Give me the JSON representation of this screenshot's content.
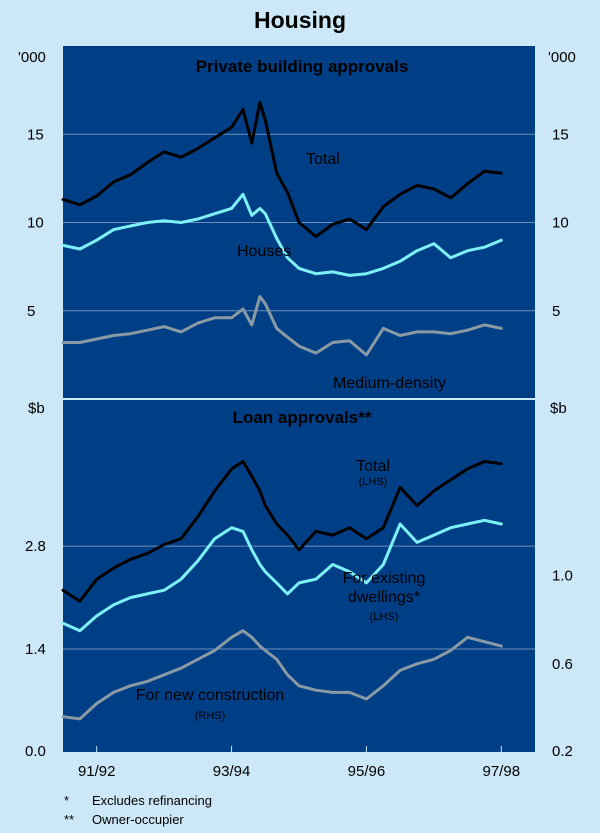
{
  "title": "Housing",
  "colors": {
    "background": "#cce8f8",
    "plot_background": "#003f86",
    "total": "#000000",
    "houses": "#7ef0f8",
    "medium_density": "#8a9aa4",
    "existing": "#7ef0f8",
    "new_construction": "#8a9aa4"
  },
  "footnotes": [
    {
      "marker": "*",
      "text": "Excludes refinancing"
    },
    {
      "marker": "**",
      "text": "Owner-occupier"
    }
  ],
  "chart_data": [
    {
      "type": "line",
      "title": "Private building approvals",
      "left_unit": "'000",
      "right_unit": "'000",
      "ylim": [
        0,
        20
      ],
      "yticks": [
        5,
        10,
        15
      ],
      "ytick_labels": [
        "5",
        "10",
        "15"
      ],
      "x_range": [
        1991.5,
        1998.5
      ],
      "series": [
        {
          "name": "Total",
          "key": "total",
          "axis": "left",
          "x": [
            1991.5,
            1991.75,
            1992.0,
            1992.25,
            1992.5,
            1992.75,
            1993.0,
            1993.25,
            1993.5,
            1993.75,
            1994.0,
            1994.17,
            1994.3,
            1994.42,
            1994.5,
            1994.67,
            1994.83,
            1995.0,
            1995.25,
            1995.5,
            1995.75,
            1996.0,
            1996.25,
            1996.5,
            1996.75,
            1997.0,
            1997.25,
            1997.5,
            1997.75,
            1998.0
          ],
          "values": [
            11.3,
            11.0,
            11.5,
            12.3,
            12.7,
            13.4,
            14.0,
            13.7,
            14.2,
            14.8,
            15.4,
            16.4,
            14.5,
            16.8,
            15.8,
            12.8,
            11.7,
            10.0,
            9.2,
            9.9,
            10.2,
            9.6,
            10.9,
            11.6,
            12.1,
            11.9,
            11.4,
            12.2,
            12.9,
            12.8
          ]
        },
        {
          "name": "Houses",
          "key": "houses",
          "axis": "left",
          "x": [
            1991.5,
            1991.75,
            1992.0,
            1992.25,
            1992.5,
            1992.75,
            1993.0,
            1993.25,
            1993.5,
            1993.75,
            1994.0,
            1994.17,
            1994.3,
            1994.42,
            1994.5,
            1994.67,
            1994.83,
            1995.0,
            1995.25,
            1995.5,
            1995.75,
            1996.0,
            1996.25,
            1996.5,
            1996.75,
            1997.0,
            1997.25,
            1997.5,
            1997.75,
            1998.0
          ],
          "values": [
            8.7,
            8.5,
            9.0,
            9.6,
            9.8,
            10.0,
            10.1,
            10.0,
            10.2,
            10.5,
            10.8,
            11.6,
            10.4,
            10.8,
            10.5,
            9.1,
            8.0,
            7.4,
            7.1,
            7.2,
            7.0,
            7.1,
            7.4,
            7.8,
            8.4,
            8.8,
            8.0,
            8.4,
            8.6,
            9.0
          ]
        },
        {
          "name": "Medium-density",
          "key": "medium_density",
          "axis": "left",
          "x": [
            1991.5,
            1991.75,
            1992.0,
            1992.25,
            1992.5,
            1992.75,
            1993.0,
            1993.25,
            1993.5,
            1993.75,
            1994.0,
            1994.17,
            1994.3,
            1994.42,
            1994.5,
            1994.67,
            1994.83,
            1995.0,
            1995.25,
            1995.5,
            1995.75,
            1996.0,
            1996.25,
            1996.5,
            1996.75,
            1997.0,
            1997.25,
            1997.5,
            1997.75,
            1998.0
          ],
          "values": [
            3.2,
            3.2,
            3.4,
            3.6,
            3.7,
            3.9,
            4.1,
            3.8,
            4.3,
            4.6,
            4.6,
            5.1,
            4.2,
            5.8,
            5.4,
            4.0,
            3.5,
            3.0,
            2.6,
            3.2,
            3.3,
            2.5,
            4.0,
            3.6,
            3.8,
            3.8,
            3.7,
            3.9,
            4.2,
            4.0
          ]
        }
      ],
      "annotations": [
        {
          "text": "Total",
          "series": "total"
        },
        {
          "text": "Houses",
          "series": "houses"
        },
        {
          "text": "Medium-density",
          "series": "medium_density"
        }
      ]
    },
    {
      "type": "line",
      "title": "Loan approvals**",
      "left_unit": "$b",
      "right_unit": "$b",
      "left_ylim": [
        0,
        4.8
      ],
      "right_ylim": [
        0.2,
        1.8
      ],
      "left_yticks": [
        0.0,
        1.4,
        2.8
      ],
      "left_ytick_labels": [
        "0.0",
        "1.4",
        "2.8"
      ],
      "right_yticks": [
        0.2,
        0.6,
        1.0
      ],
      "right_ytick_labels": [
        "0.2",
        "0.6",
        "1.0"
      ],
      "x_range": [
        1991.5,
        1998.5
      ],
      "xticks": [
        "91/92",
        "93/94",
        "95/96",
        "97/98"
      ],
      "series": [
        {
          "name": "Total (LHS)",
          "key": "total",
          "axis": "left",
          "x": [
            1991.5,
            1991.75,
            1992.0,
            1992.25,
            1992.5,
            1992.75,
            1993.0,
            1993.25,
            1993.5,
            1993.75,
            1994.0,
            1994.17,
            1994.3,
            1994.42,
            1994.5,
            1994.67,
            1994.83,
            1995.0,
            1995.25,
            1995.5,
            1995.75,
            1996.0,
            1996.25,
            1996.5,
            1996.75,
            1997.0,
            1997.25,
            1997.5,
            1997.75,
            1998.0
          ],
          "values": [
            2.2,
            2.05,
            2.35,
            2.5,
            2.62,
            2.7,
            2.82,
            2.9,
            3.2,
            3.55,
            3.85,
            3.95,
            3.75,
            3.55,
            3.35,
            3.1,
            2.95,
            2.75,
            3.0,
            2.95,
            3.05,
            2.9,
            3.05,
            3.6,
            3.35,
            3.55,
            3.7,
            3.85,
            3.95,
            3.92
          ]
        },
        {
          "name": "For existing dwellings* (LHS)",
          "key": "existing",
          "axis": "left",
          "x": [
            1991.5,
            1991.75,
            1992.0,
            1992.25,
            1992.5,
            1992.75,
            1993.0,
            1993.25,
            1993.5,
            1993.75,
            1994.0,
            1994.17,
            1994.3,
            1994.42,
            1994.5,
            1994.67,
            1994.83,
            1995.0,
            1995.25,
            1995.5,
            1995.75,
            1996.0,
            1996.25,
            1996.5,
            1996.75,
            1997.0,
            1997.25,
            1997.5,
            1997.75,
            1998.0
          ],
          "values": [
            1.75,
            1.65,
            1.85,
            2.0,
            2.1,
            2.15,
            2.2,
            2.35,
            2.6,
            2.9,
            3.05,
            3.0,
            2.75,
            2.55,
            2.45,
            2.3,
            2.15,
            2.3,
            2.35,
            2.55,
            2.45,
            2.3,
            2.55,
            3.1,
            2.85,
            2.95,
            3.05,
            3.1,
            3.15,
            3.1
          ]
        },
        {
          "name": "For new construction (RHS)",
          "key": "new_construction",
          "axis": "right",
          "x": [
            1991.5,
            1991.75,
            1992.0,
            1992.25,
            1992.5,
            1992.75,
            1993.0,
            1993.25,
            1993.5,
            1993.75,
            1994.0,
            1994.17,
            1994.3,
            1994.42,
            1994.5,
            1994.67,
            1994.83,
            1995.0,
            1995.25,
            1995.5,
            1995.75,
            1996.0,
            1996.25,
            1996.5,
            1996.75,
            1997.0,
            1997.25,
            1997.5,
            1997.75,
            1998.0
          ],
          "values": [
            0.36,
            0.35,
            0.42,
            0.47,
            0.5,
            0.52,
            0.55,
            0.58,
            0.62,
            0.66,
            0.72,
            0.75,
            0.72,
            0.68,
            0.66,
            0.62,
            0.55,
            0.5,
            0.48,
            0.47,
            0.47,
            0.44,
            0.5,
            0.57,
            0.6,
            0.62,
            0.66,
            0.72,
            0.7,
            0.68
          ]
        }
      ],
      "annotations": [
        {
          "text": "Total",
          "sub": "(LHS)",
          "series": "total"
        },
        {
          "text": "For existing",
          "text2": "dwellings*",
          "sub": "(LHS)",
          "series": "existing"
        },
        {
          "text": "For new construction",
          "sub": "(RHS)",
          "series": "new_construction"
        }
      ]
    }
  ]
}
